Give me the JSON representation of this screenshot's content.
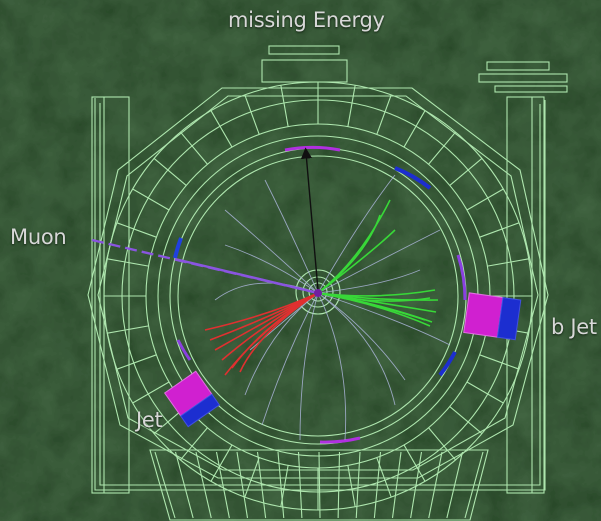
{
  "labels": {
    "missing_energy": "missing Energy",
    "muon": "Muon",
    "b_jet": "b Jet",
    "jet": "Jet"
  },
  "colors": {
    "background": "#2a4a2a",
    "detector_lines": "#aee6ae",
    "muon_track": "#8a55e0",
    "jet_tracks_red": "#e03030",
    "b_jet_tracks_green": "#38d838",
    "soft_tracks": "#aab4d8",
    "calorimeter_magenta": "#d020d0",
    "calorimeter_blue": "#1c2ed0",
    "missing_energy_arrow": "#101010"
  }
}
